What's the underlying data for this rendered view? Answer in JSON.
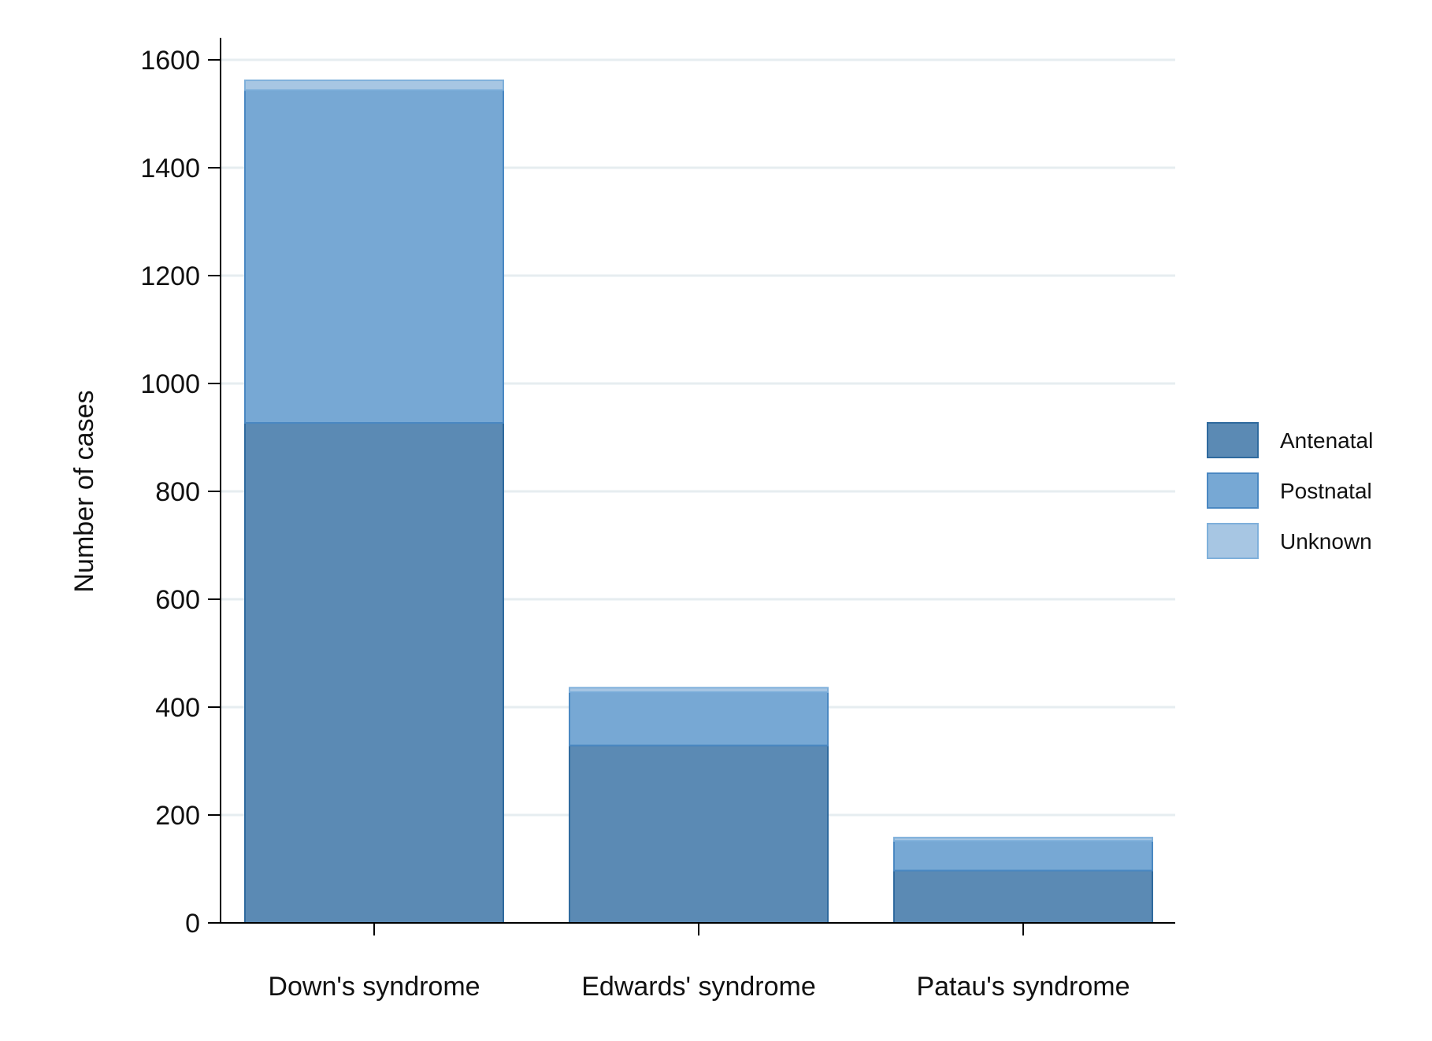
{
  "chart_data": {
    "type": "bar",
    "stacked": true,
    "categories": [
      "Down's syndrome",
      "Edwards' syndrome",
      "Patau's syndrome"
    ],
    "series": [
      {
        "name": "Antenatal",
        "values": [
          927,
          329,
          97
        ],
        "color": "#5b8ab4"
      },
      {
        "name": "Postnatal",
        "values": [
          617,
          99,
          55
        ],
        "color": "#77a8d4"
      },
      {
        "name": "Unknown",
        "values": [
          18,
          8,
          6
        ],
        "color": "#a7c6e3"
      }
    ],
    "title": "",
    "xlabel": "",
    "ylabel": "Number of cases",
    "ylim": [
      0,
      1600
    ],
    "yticks": [
      0,
      200,
      400,
      600,
      800,
      1000,
      1200,
      1400,
      1600
    ],
    "grid": true,
    "legend_position": "right"
  }
}
